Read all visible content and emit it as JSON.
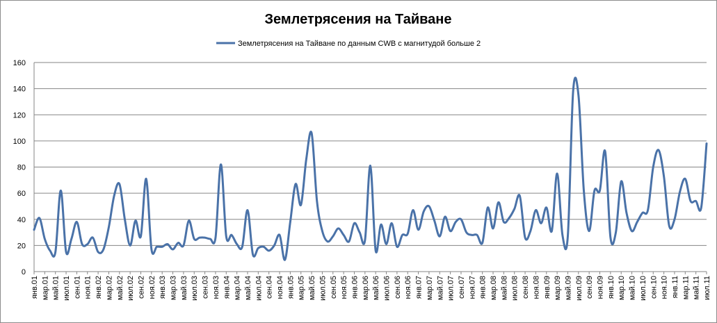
{
  "chart_data": {
    "type": "line",
    "title": "Землетрясения на Тайване",
    "legend_position": "top-center",
    "grid": true,
    "ylim": [
      0,
      160
    ],
    "y_ticks": [
      "0",
      "20",
      "40",
      "60",
      "80",
      "100",
      "120",
      "140",
      "160"
    ],
    "x_tick_labels": [
      "янв.01",
      "мар.01",
      "май.01",
      "июл.01",
      "сен.01",
      "ноя.01",
      "янв.02",
      "мар.02",
      "май.02",
      "июл.02",
      "сен.02",
      "ноя.02",
      "янв.03",
      "мар.03",
      "май.03",
      "июл.03",
      "сен.03",
      "ноя.03",
      "янв.04",
      "мар.04",
      "май.04",
      "июл.04",
      "сен.04",
      "ноя.04",
      "янв.05",
      "мар.05",
      "май.05",
      "июл.05",
      "сен.05",
      "ноя.05",
      "янв.06",
      "мар.06",
      "май.06",
      "июл.06",
      "сен.06",
      "ноя.06",
      "янв.07",
      "мар.07",
      "май.07",
      "июл.07",
      "сен.07",
      "ноя.07",
      "янв.08",
      "мар.08",
      "май.08",
      "июл.08",
      "сен.08",
      "ноя.08",
      "янв.09",
      "мар.09",
      "май.09",
      "июл.09",
      "сен.09",
      "ноя.09",
      "янв.10",
      "мар.10",
      "май.10",
      "июл.10",
      "сен.10",
      "ноя.10",
      "янв.11",
      "мар.11",
      "май.11",
      "июл.11"
    ],
    "series": [
      {
        "name": "Землетрясения на Тайване  по данным CWB с магнитудой больше 2",
        "color": "#4a72a8",
        "values": [
          32,
          41,
          25,
          16,
          15,
          62,
          15,
          25,
          38,
          21,
          21,
          26,
          15,
          17,
          34,
          58,
          67,
          40,
          20,
          39,
          27,
          71,
          17,
          19,
          19,
          21,
          17,
          22,
          20,
          39,
          25,
          26,
          26,
          25,
          26,
          82,
          27,
          28,
          21,
          19,
          47,
          13,
          18,
          19,
          16,
          20,
          28,
          9,
          38,
          67,
          51,
          86,
          106,
          54,
          31,
          23,
          27,
          33,
          28,
          23,
          37,
          30,
          24,
          81,
          16,
          36,
          21,
          37,
          19,
          28,
          29,
          47,
          32,
          46,
          50,
          39,
          27,
          42,
          31,
          38,
          40,
          30,
          28,
          28,
          22,
          49,
          33,
          53,
          38,
          41,
          48,
          58,
          26,
          31,
          47,
          37,
          49,
          31,
          75,
          28,
          27,
          138,
          135,
          62,
          31,
          62,
          62,
          92,
          26,
          30,
          69,
          45,
          31,
          38,
          45,
          47,
          80,
          93,
          73,
          35,
          40,
          61,
          71,
          54,
          54,
          49,
          98
        ]
      }
    ]
  }
}
